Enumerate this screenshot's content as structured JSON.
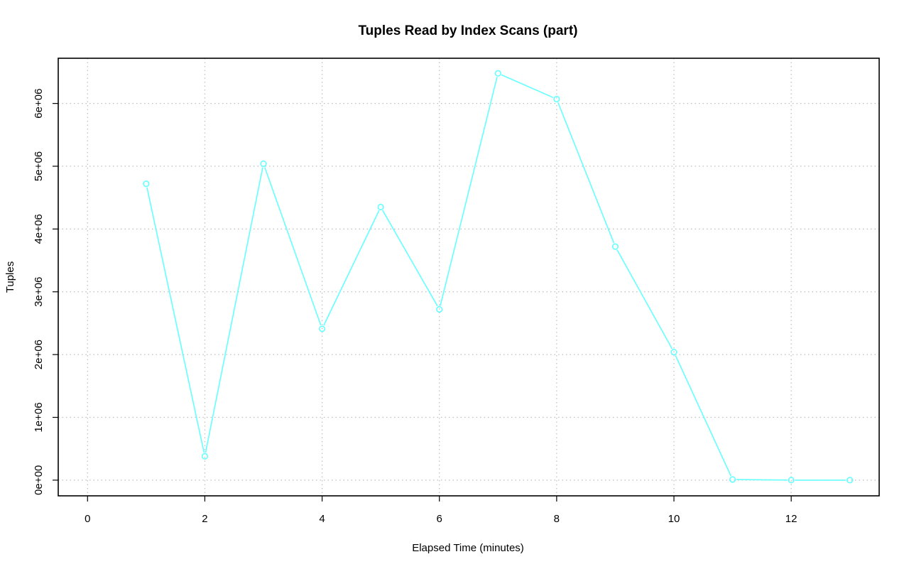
{
  "chart_data": {
    "type": "line",
    "title": "Tuples Read by Index Scans (part)",
    "xlabel": "Elapsed Time (minutes)",
    "ylabel": "Tuples",
    "xlim": [
      -0.5,
      13.5
    ],
    "ylim": [
      -250000,
      6720000
    ],
    "x_ticks": [
      0,
      2,
      4,
      6,
      8,
      10,
      12
    ],
    "x_tick_labels": [
      "0",
      "2",
      "4",
      "6",
      "8",
      "10",
      "12"
    ],
    "y_ticks": [
      0,
      1000000,
      2000000,
      3000000,
      4000000,
      5000000,
      6000000
    ],
    "y_tick_labels": [
      "0e+00",
      "1e+06",
      "2e+06",
      "3e+06",
      "4e+06",
      "5e+06",
      "6e+06"
    ],
    "grid": true,
    "series": [
      {
        "color": "#66ffff",
        "x": [
          1,
          2,
          3,
          4,
          5,
          6,
          7,
          8,
          9,
          10,
          11,
          12,
          13
        ],
        "y": [
          4720000,
          380000,
          5040000,
          2410000,
          4350000,
          2720000,
          6480000,
          6070000,
          3720000,
          2040000,
          10000,
          0,
          0
        ]
      }
    ]
  }
}
